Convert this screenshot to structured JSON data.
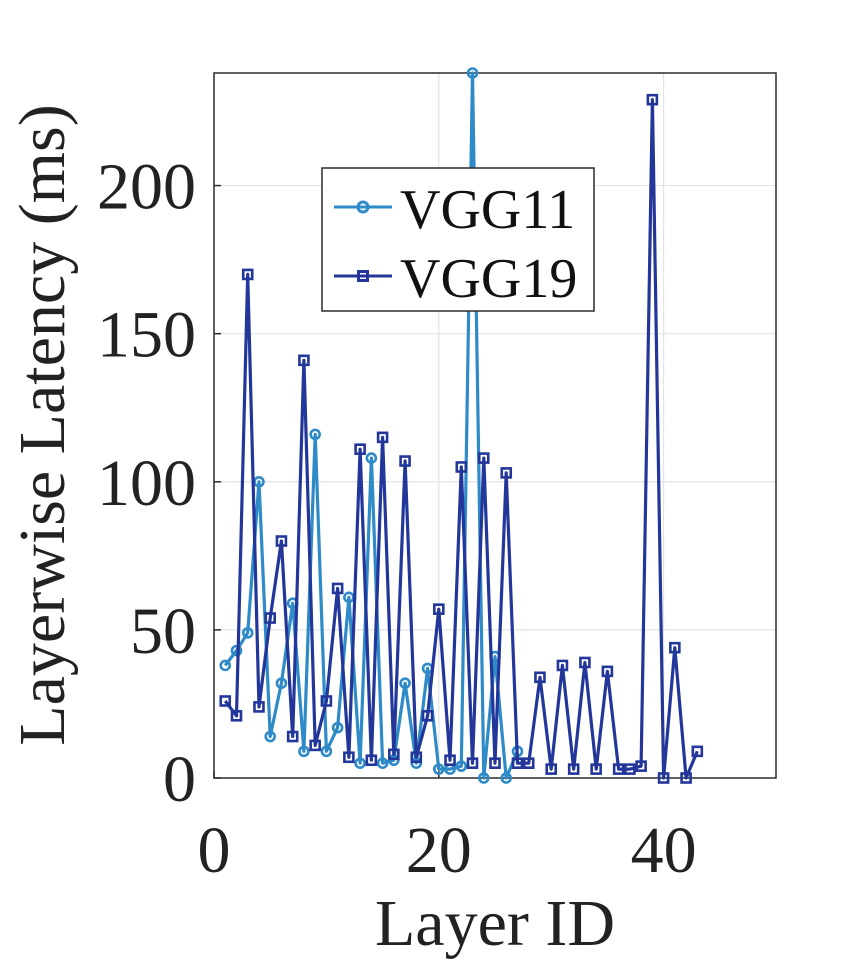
{
  "chart_data": {
    "type": "line",
    "title": "",
    "xlabel": "Layer ID",
    "ylabel": "Layerwise Latency (ms)",
    "xlim": [
      0,
      50
    ],
    "ylim": [
      0,
      238
    ],
    "xticks": [
      0,
      20,
      40
    ],
    "yticks": [
      0,
      50,
      100,
      150,
      200
    ],
    "grid": true,
    "legend_position": "upper-center",
    "series": [
      {
        "name": "VGG11",
        "color": "#2e8bc7",
        "marker": "circle",
        "x": [
          1,
          2,
          3,
          4,
          5,
          6,
          7,
          8,
          9,
          10,
          11,
          12,
          13,
          14,
          15,
          16,
          17,
          18,
          19,
          20,
          21,
          22,
          23,
          24,
          25,
          26,
          27
        ],
        "y": [
          38,
          43,
          49,
          100,
          14,
          32,
          59,
          9,
          116,
          9,
          17,
          61,
          5,
          108,
          5,
          6,
          32,
          5,
          37,
          3,
          3,
          4,
          238,
          0,
          41,
          0,
          9
        ]
      },
      {
        "name": "VGG19",
        "color": "#23379a",
        "marker": "square",
        "x": [
          1,
          2,
          3,
          4,
          5,
          6,
          7,
          8,
          9,
          10,
          11,
          12,
          13,
          14,
          15,
          16,
          17,
          18,
          19,
          20,
          21,
          22,
          23,
          24,
          25,
          26,
          27,
          28,
          29,
          30,
          31,
          32,
          33,
          34,
          35,
          36,
          37,
          38,
          39,
          40,
          41,
          42,
          43
        ],
        "y": [
          26,
          21,
          170,
          24,
          54,
          80,
          14,
          141,
          11,
          26,
          64,
          7,
          111,
          6,
          115,
          8,
          107,
          7,
          21,
          57,
          6,
          105,
          5,
          108,
          5,
          103,
          5,
          5,
          34,
          3,
          38,
          3,
          39,
          3,
          36,
          3,
          3,
          4,
          229,
          0,
          44,
          0,
          9
        ]
      }
    ]
  }
}
